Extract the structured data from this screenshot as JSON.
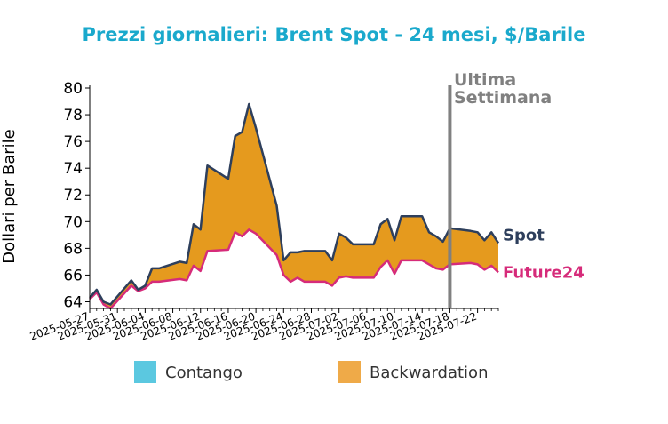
{
  "chart_data": {
    "type": "area",
    "title": "Prezzi giornalieri: Brent Spot - 24 mesi, $/Barile",
    "ylabel": "Dollari per Barile",
    "xlabel": "",
    "ylim": [
      63.5,
      80.2
    ],
    "y_ticks": [
      64,
      66,
      68,
      70,
      72,
      74,
      76,
      78,
      80
    ],
    "x_ticks": [
      "2025-05-27",
      "2025-05-31",
      "2025-06-04",
      "2025-06-08",
      "2025-06-12",
      "2025-06-16",
      "2025-06-20",
      "2025-06-24",
      "2025-06-28",
      "2025-07-02",
      "2025-07-06",
      "2025-07-10",
      "2025-07-14",
      "2025-07-18",
      "2025-07-22"
    ],
    "start_date": "2025-05-27",
    "x": [
      "2025-05-27",
      "2025-05-28",
      "2025-05-29",
      "2025-05-30",
      "2025-06-02",
      "2025-06-03",
      "2025-06-04",
      "2025-06-05",
      "2025-06-06",
      "2025-06-09",
      "2025-06-10",
      "2025-06-11",
      "2025-06-12",
      "2025-06-13",
      "2025-06-16",
      "2025-06-17",
      "2025-06-18",
      "2025-06-19",
      "2025-06-20",
      "2025-06-23",
      "2025-06-24",
      "2025-06-25",
      "2025-06-26",
      "2025-06-27",
      "2025-06-30",
      "2025-07-01",
      "2025-07-02",
      "2025-07-03",
      "2025-07-04",
      "2025-07-07",
      "2025-07-08",
      "2025-07-09",
      "2025-07-10",
      "2025-07-11",
      "2025-07-14",
      "2025-07-15",
      "2025-07-16",
      "2025-07-17",
      "2025-07-18",
      "2025-07-21",
      "2025-07-22",
      "2025-07-23",
      "2025-07-24",
      "2025-07-25"
    ],
    "series": [
      {
        "name": "Spot",
        "color": "#2e3f5c",
        "values": [
          64.3,
          64.9,
          64.0,
          63.8,
          65.6,
          64.9,
          65.2,
          66.5,
          66.5,
          67.0,
          66.9,
          69.8,
          69.4,
          74.2,
          73.2,
          76.4,
          76.7,
          78.8,
          77.0,
          71.2,
          67.1,
          67.7,
          67.7,
          67.8,
          67.8,
          67.1,
          69.1,
          68.8,
          68.3,
          68.3,
          69.8,
          70.2,
          68.6,
          70.4,
          70.4,
          69.2,
          68.9,
          68.5,
          69.5,
          69.3,
          69.2,
          68.6,
          69.2,
          68.4
        ]
      },
      {
        "name": "Future24",
        "color": "#d62b7a",
        "values": [
          64.2,
          64.7,
          63.8,
          63.5,
          65.2,
          64.8,
          65.0,
          65.5,
          65.5,
          65.7,
          65.6,
          66.7,
          66.3,
          67.8,
          67.9,
          69.2,
          68.9,
          69.4,
          69.1,
          67.5,
          66.0,
          65.5,
          65.8,
          65.5,
          65.5,
          65.2,
          65.8,
          65.9,
          65.8,
          65.8,
          66.6,
          67.1,
          66.1,
          67.1,
          67.1,
          66.8,
          66.5,
          66.4,
          66.8,
          66.9,
          66.8,
          66.4,
          66.7,
          66.2
        ]
      }
    ],
    "fills": {
      "backwardation": "#e59a1e",
      "contango": "#5bc8e0"
    },
    "title_color": "#1aa9cc",
    "marker": {
      "date": "2025-07-18",
      "label_line1": "Ultima",
      "label_line2": "Settimana",
      "color": "#808080"
    },
    "legend": [
      {
        "label": "Contango",
        "color": "#5bc8e0"
      },
      {
        "label": "Backwardation",
        "color": "#efaa48"
      }
    ],
    "legend_position": "bottom",
    "grid": false
  }
}
